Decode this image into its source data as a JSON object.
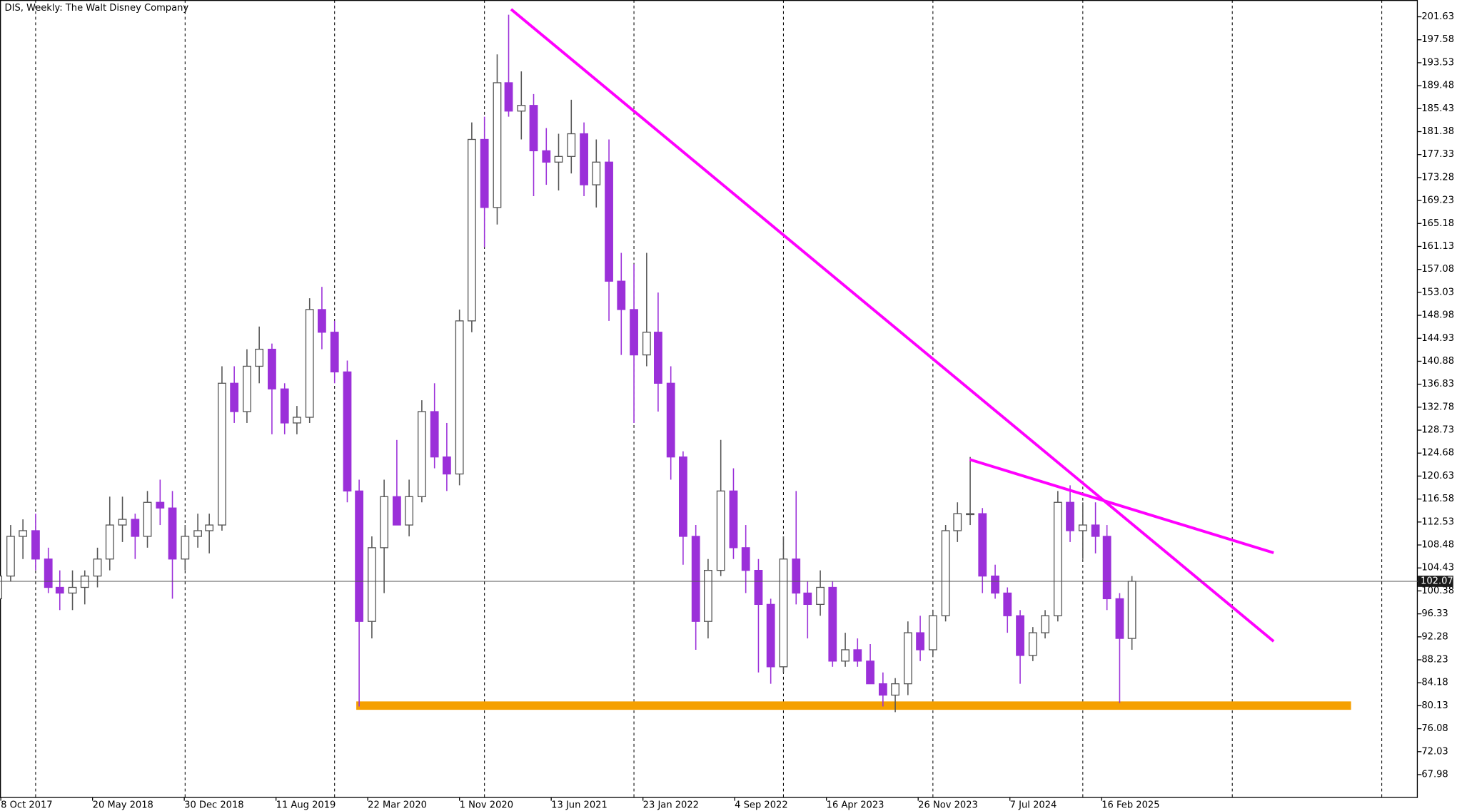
{
  "chart_data": {
    "type": "candlestick",
    "title": "DIS, Weekly:  The Walt Disney Company",
    "x": [
      "2017-10-01",
      "2017-11-01",
      "2017-12-01",
      "2018-01-01",
      "2018-02-01",
      "2018-03-01",
      "2018-04-01",
      "2018-05-01",
      "2018-06-01",
      "2018-07-01",
      "2018-08-01",
      "2018-09-01",
      "2018-10-01",
      "2018-11-01",
      "2018-12-01",
      "2019-01-01",
      "2019-02-01",
      "2019-03-01",
      "2019-04-01",
      "2019-05-01",
      "2019-06-01",
      "2019-07-01",
      "2019-08-01",
      "2019-09-01",
      "2019-10-01",
      "2019-11-01",
      "2019-12-01",
      "2020-01-01",
      "2020-02-01",
      "2020-03-01",
      "2020-04-01",
      "2020-05-01",
      "2020-06-01",
      "2020-07-01",
      "2020-08-01",
      "2020-09-01",
      "2020-10-01",
      "2020-11-01",
      "2020-12-01",
      "2021-01-01",
      "2021-02-01",
      "2021-03-01",
      "2021-04-01",
      "2021-05-01",
      "2021-06-01",
      "2021-07-01",
      "2021-08-01",
      "2021-09-01",
      "2021-10-01",
      "2021-11-01",
      "2021-12-01",
      "2022-01-01",
      "2022-02-01",
      "2022-03-01",
      "2022-04-01",
      "2022-05-01",
      "2022-06-01",
      "2022-07-01",
      "2022-08-01",
      "2022-09-01",
      "2022-10-01",
      "2022-11-01",
      "2022-12-01",
      "2023-01-01",
      "2023-02-01",
      "2023-03-01",
      "2023-04-01",
      "2023-05-01",
      "2023-06-01",
      "2023-07-01",
      "2023-08-01",
      "2023-09-01",
      "2023-10-01",
      "2023-11-01",
      "2023-12-01",
      "2024-01-01",
      "2024-02-01",
      "2024-03-01",
      "2024-04-01",
      "2024-05-01",
      "2024-06-01",
      "2024-07-01",
      "2024-08-01",
      "2024-09-01",
      "2024-10-01",
      "2024-11-01",
      "2024-12-01",
      "2025-01-01",
      "2025-02-01",
      "2025-03-01",
      "2025-04-01",
      "2025-05-01"
    ],
    "open": [
      99,
      103,
      110,
      111,
      106,
      101,
      100,
      101,
      103,
      106,
      112,
      113,
      110,
      116,
      115,
      106,
      110,
      111,
      112,
      137,
      132,
      140,
      143,
      136,
      130,
      131,
      150,
      146,
      139,
      118,
      95,
      108,
      117,
      112,
      117,
      132,
      124,
      121,
      148,
      180,
      168,
      190,
      185,
      186,
      178,
      176,
      177,
      181,
      172,
      176,
      155,
      150,
      142,
      146,
      137,
      124,
      110,
      95,
      104,
      118,
      108,
      104,
      98,
      87,
      106,
      100,
      98,
      101,
      88,
      90,
      88,
      84,
      82,
      84,
      93,
      90,
      96,
      111,
      114,
      114,
      103,
      100,
      96,
      89,
      93,
      96,
      116,
      111,
      112,
      110,
      99,
      92
    ],
    "high": [
      104,
      112,
      113,
      114,
      108,
      104,
      104,
      104,
      108,
      117,
      117,
      114,
      118,
      120,
      118,
      112,
      114,
      114,
      140,
      140,
      143,
      147,
      144,
      137,
      133,
      152,
      154,
      148,
      141,
      120,
      110,
      120,
      127,
      120,
      134,
      137,
      130,
      150,
      183,
      184,
      195,
      202,
      192,
      188,
      182,
      181,
      187,
      183,
      180,
      180,
      160,
      158,
      160,
      153,
      140,
      125,
      112,
      106,
      127,
      122,
      112,
      106,
      99,
      110,
      118,
      102,
      104,
      102,
      93,
      92,
      91,
      86,
      85,
      95,
      96,
      97,
      112,
      116,
      124,
      115,
      105,
      101,
      97,
      94,
      97,
      118,
      119,
      116,
      116,
      112,
      100,
      103
    ],
    "low": [
      97,
      102,
      106,
      104,
      100,
      97,
      97,
      98,
      101,
      104,
      109,
      106,
      108,
      112,
      99,
      104,
      108,
      107,
      111,
      130,
      130,
      137,
      128,
      128,
      128,
      130,
      143,
      137,
      116,
      80,
      92,
      100,
      112,
      110,
      116,
      122,
      118,
      119,
      146,
      161,
      165,
      184,
      180,
      170,
      172,
      171,
      174,
      170,
      168,
      148,
      142,
      130,
      140,
      132,
      120,
      105,
      90,
      92,
      103,
      106,
      100,
      86,
      84,
      86,
      98,
      92,
      96,
      87,
      87,
      87,
      84,
      80,
      79,
      82,
      88,
      89,
      95,
      109,
      112,
      100,
      99,
      93,
      84,
      88,
      92,
      95,
      109,
      106,
      107,
      97,
      80.6,
      90
    ],
    "close": [
      103,
      110,
      111,
      106,
      101,
      100,
      101,
      103,
      106,
      112,
      113,
      110,
      116,
      115,
      106,
      110,
      111,
      112,
      137,
      132,
      140,
      143,
      136,
      130,
      131,
      150,
      146,
      139,
      118,
      95,
      108,
      117,
      112,
      117,
      132,
      124,
      121,
      148,
      180,
      168,
      190,
      185,
      186,
      178,
      176,
      177,
      181,
      172,
      176,
      155,
      150,
      142,
      146,
      137,
      124,
      110,
      95,
      104,
      118,
      108,
      104,
      98,
      87,
      106,
      100,
      98,
      101,
      88,
      90,
      88,
      84,
      82,
      84,
      93,
      90,
      96,
      111,
      114,
      114,
      103,
      100,
      96,
      89,
      93,
      96,
      116,
      111,
      112,
      110,
      99,
      92,
      102.07
    ],
    "up_color": "#555555",
    "down_color": "#9b30d9",
    "xlim": [
      "2017-10-06",
      "2027-03-30"
    ],
    "xticks": [
      {
        "value": "2017-10-08",
        "label": "8 Oct 2017"
      },
      {
        "value": "2018-05-20",
        "label": "20 May 2018"
      },
      {
        "value": "2018-12-30",
        "label": "30 Dec 2018"
      },
      {
        "value": "2019-08-11",
        "label": "11 Aug 2019"
      },
      {
        "value": "2020-03-22",
        "label": "22 Mar 2020"
      },
      {
        "value": "2020-11-01",
        "label": "1 Nov 2020"
      },
      {
        "value": "2021-06-13",
        "label": "13 Jun 2021"
      },
      {
        "value": "2022-01-23",
        "label": "23 Jan 2022"
      },
      {
        "value": "2022-09-04",
        "label": "4 Sep 2022"
      },
      {
        "value": "2023-04-16",
        "label": "16 Apr 2023"
      },
      {
        "value": "2023-11-26",
        "label": "26 Nov 2023"
      },
      {
        "value": "2024-07-07",
        "label": "7 Jul 2024"
      },
      {
        "value": "2025-02-16",
        "label": "16 Feb 2025"
      }
    ],
    "ylim": [
      64.03,
      204.59
    ],
    "yticks": [
      201.63,
      197.58,
      193.53,
      189.48,
      185.43,
      181.38,
      177.33,
      173.28,
      169.23,
      165.18,
      161.13,
      157.08,
      153.03,
      148.98,
      144.93,
      140.88,
      136.83,
      132.78,
      128.73,
      124.68,
      120.63,
      116.58,
      112.53,
      108.48,
      104.43,
      100.38,
      96.33,
      92.28,
      88.23,
      84.18,
      80.13,
      76.08,
      72.03,
      67.98
    ],
    "last_price": 102.07,
    "trendlines": [
      {
        "color": "#ff00ff",
        "x": [
          "2021-03-07",
          "2026-04-12"
        ],
        "y": [
          202.95,
          91.49
        ]
      },
      {
        "color": "#ff00ff",
        "x": [
          "2024-03-31",
          "2026-04-12"
        ],
        "y": [
          123.55,
          107.1
        ]
      }
    ],
    "support_band": {
      "color": "#f5a000",
      "x": [
        "2020-02-23",
        "2026-10-18"
      ],
      "y": 80.15
    }
  }
}
